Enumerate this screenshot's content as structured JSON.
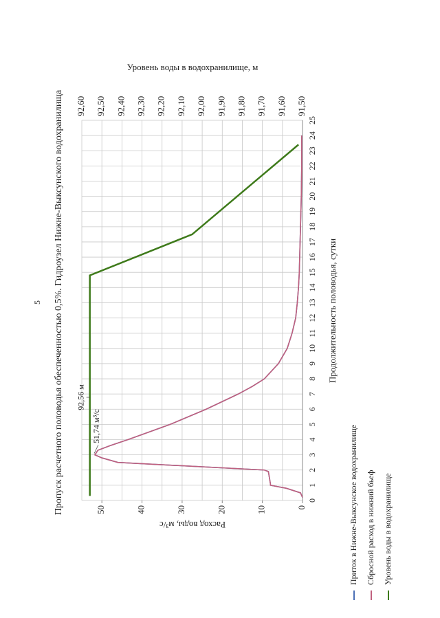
{
  "page_number": "5",
  "chart_data": {
    "type": "line",
    "title": "Пропуск расчетного половодья обеспеченностью 0,5%. Гидроузел Нижне-Выксунского водохранилища",
    "x_label": "Продолжительность половодья, сутки",
    "y_label": "Расход воды, м³/с",
    "y2_label": "Уровень воды в водохранилище, м",
    "x": [
      0.2,
      0.5,
      0.8,
      1,
      1.1,
      1.9,
      2,
      2.5,
      2.8,
      3,
      3.3,
      3.6,
      4,
      5,
      6,
      7,
      7.5,
      8,
      9,
      10,
      11,
      12,
      13,
      14,
      15,
      16,
      18,
      20,
      22,
      24
    ],
    "xlim": [
      0,
      25
    ],
    "xticks": [
      0,
      1,
      2,
      3,
      4,
      5,
      6,
      7,
      8,
      9,
      10,
      11,
      12,
      13,
      14,
      15,
      16,
      17,
      18,
      19,
      20,
      21,
      22,
      23,
      24,
      25
    ],
    "ylim": [
      0,
      55
    ],
    "yticks": [
      0,
      10,
      20,
      30,
      40,
      50
    ],
    "y2lim": [
      91.5,
      92.6
    ],
    "y2ticks": [
      {
        "value": 91.5,
        "label": "91,50"
      },
      {
        "value": 91.6,
        "label": "91,60"
      },
      {
        "value": 91.7,
        "label": "91,70"
      },
      {
        "value": 91.8,
        "label": "91,80"
      },
      {
        "value": 91.9,
        "label": "91,90"
      },
      {
        "value": 92.0,
        "label": "92,00"
      },
      {
        "value": 92.1,
        "label": "92,10"
      },
      {
        "value": 92.2,
        "label": "92,20"
      },
      {
        "value": 92.3,
        "label": "92,30"
      },
      {
        "value": 92.4,
        "label": "92,40"
      },
      {
        "value": 92.5,
        "label": "92,50"
      },
      {
        "value": 92.6,
        "label": "92,60"
      }
    ],
    "grid": true,
    "legend": "bottom",
    "series": [
      {
        "name": "Приток в Нижне-Выксунское водохранилище",
        "color": "#4a6fb5",
        "values": [
          0,
          0.5,
          4,
          8,
          8,
          8.5,
          9.5,
          46,
          50,
          51.74,
          51,
          48,
          43.5,
          33,
          24,
          16,
          12.5,
          9.5,
          6,
          3.8,
          2.6,
          1.7,
          1.3,
          1,
          0.8,
          0.7,
          0.5,
          0.3,
          0.2,
          0.2
        ]
      },
      {
        "name": "Сбросной расход в нижний бьеф",
        "color": "#c0607e",
        "values": [
          0,
          0.5,
          4,
          8,
          8,
          8.5,
          9.5,
          46,
          50,
          51.74,
          51,
          48,
          43.5,
          33,
          24,
          16,
          12.5,
          9.5,
          6,
          3.8,
          2.6,
          1.7,
          1.3,
          1,
          0.8,
          0.7,
          0.5,
          0.3,
          0.2,
          0.2
        ]
      },
      {
        "name": "Уровень воды в водохранилище",
        "color": "#3e7a1a",
        "axis": "y2",
        "x": [
          0.3,
          14.8,
          17.5,
          23.4
        ],
        "values": [
          92.56,
          92.56,
          92.05,
          91.52
        ]
      }
    ],
    "annotations": [
      {
        "text": "92,56 м"
      },
      {
        "text": "51,74 м³/с"
      }
    ]
  }
}
